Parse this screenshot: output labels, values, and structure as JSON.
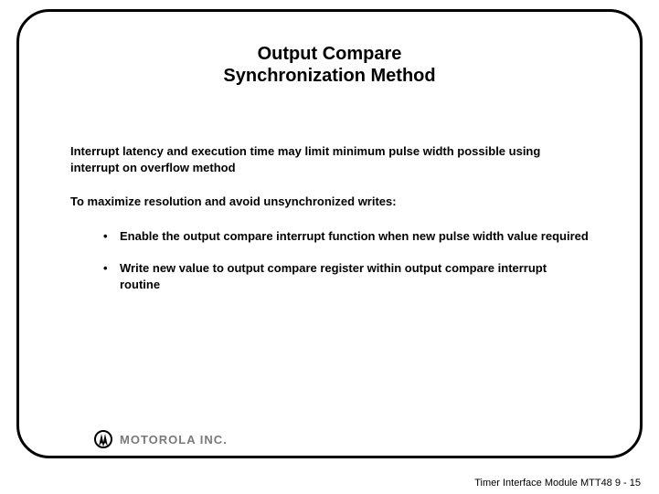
{
  "title": {
    "line1": "Output Compare",
    "line2": "Synchronization Method",
    "fontsize": 20,
    "color": "#000000"
  },
  "body": {
    "fontsize": 13,
    "color": "#000000",
    "para1": "Interrupt latency and execution time may limit minimum pulse width possible using interrupt on overflow method",
    "para2": "To maximize resolution and avoid unsynchronized writes:",
    "bullets": [
      "Enable the output compare interrupt function when new pulse width value required",
      "Write new value to output compare register within output compare interrupt routine"
    ]
  },
  "logo": {
    "text": "MOTOROLA INC.",
    "color": "#7a7a7a"
  },
  "footer": {
    "text": "Timer Interface Module MTT48  9 - 15",
    "fontsize": 11
  },
  "frame": {
    "border_color": "#000000",
    "border_width": 3,
    "border_radius": 36,
    "background": "#ffffff"
  }
}
